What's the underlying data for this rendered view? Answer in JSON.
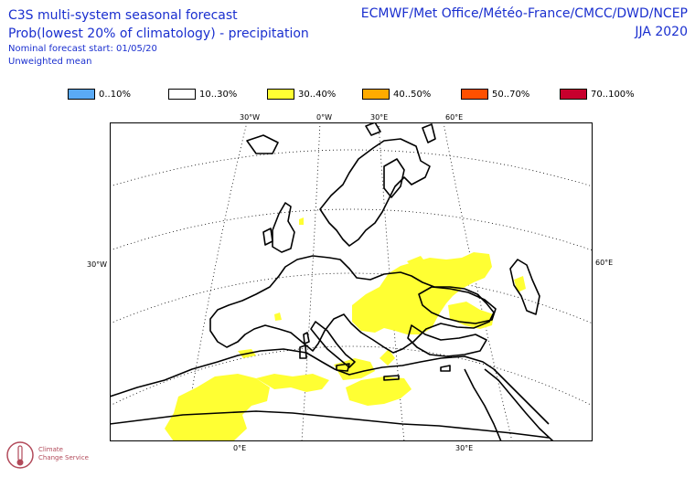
{
  "header": {
    "title": "C3S multi-system seasonal forecast",
    "subtitle": "Prob(lowest 20% of climatology) - precipitation",
    "forecast_start": "Nominal forecast start: 01/05/20",
    "mean_type": "Unweighted mean",
    "centres": "ECMWF/Met Office/Météo-France/CMCC/DWD/NCEP",
    "season": "JJA 2020"
  },
  "legend": [
    {
      "label": "0..10%",
      "color": "#5aaaf5"
    },
    {
      "label": "10..30%",
      "color": "#ffffff"
    },
    {
      "label": "30..40%",
      "color": "#ffff33"
    },
    {
      "label": "40..50%",
      "color": "#ffab00"
    },
    {
      "label": "50..70%",
      "color": "#ff5000"
    },
    {
      "label": "70..100%",
      "color": "#c8002d"
    }
  ],
  "map": {
    "top_labels": [
      "30°W",
      "0°W",
      "30°E",
      "60°E"
    ],
    "side_label_left": "30°W",
    "side_label_right": "60°E",
    "bottom_labels": [
      "0°E",
      "30°E"
    ]
  },
  "logo": {
    "line1": "Climate",
    "line2": "Change Service"
  }
}
